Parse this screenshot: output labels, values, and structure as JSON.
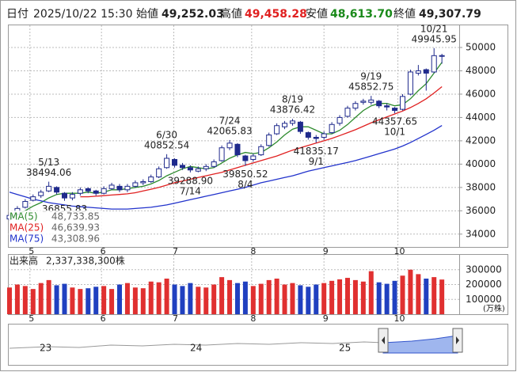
{
  "header": {
    "date_label": "日付",
    "date": "2025/10/22 15:30",
    "open_label": "始値",
    "open": "49,252.03",
    "high_label": "高値",
    "high": "49,458.28",
    "low_label": "安値",
    "low": "48,613.70",
    "close_label": "終値",
    "close": "49,307.79"
  },
  "chart_data": {
    "type": "candlestick",
    "grid": true,
    "legend": "lower left",
    "up_color": "#ffffff",
    "down_color": "#1f2a8c",
    "edge_color": "#1f2a8c",
    "xlim": [
      -0.2,
      57.2
    ],
    "xticks": [
      {
        "value": 2.6,
        "label": "5"
      },
      {
        "value": 11.7,
        "label": "6"
      },
      {
        "value": 20.9,
        "label": "7"
      },
      {
        "value": 30.8,
        "label": "8"
      },
      {
        "value": 40,
        "label": "9"
      },
      {
        "value": 49.4,
        "label": "10"
      }
    ],
    "ylim": [
      32900,
      51900
    ],
    "yticks": [
      34000,
      36000,
      38000,
      40000,
      42000,
      44000,
      46000,
      48000,
      50000
    ],
    "open": [
      35300,
      35700,
      36300,
      36900,
      37300,
      37700,
      38000,
      37500,
      37100,
      37500,
      37900,
      37700,
      37500,
      37900,
      38100,
      37800,
      38100,
      38400,
      38500,
      38900,
      39700,
      40400,
      39900,
      39700,
      39400,
      39600,
      39800,
      40300,
      41400,
      41700,
      40700,
      40400,
      40800,
      41600,
      42600,
      43200,
      43500,
      43600,
      42700,
      42300,
      42300,
      42700,
      43500,
      44100,
      44800,
      45300,
      45300,
      45400,
      45000,
      44800,
      44700,
      46000,
      47800,
      48100,
      47900,
      49252.03
    ],
    "high": [
      35800,
      36400,
      37000,
      37400,
      37800,
      38494.06,
      38100,
      37600,
      37600,
      38000,
      38000,
      37800,
      38100,
      38400,
      38300,
      38300,
      38600,
      38700,
      39100,
      39800,
      40852.54,
      40500,
      40100,
      39900,
      39800,
      40000,
      40400,
      41600,
      42065.83,
      41800,
      40800,
      40900,
      41700,
      42700,
      43500,
      43700,
      43876.42,
      43700,
      42800,
      42500,
      42800,
      43600,
      44200,
      45000,
      45400,
      45600,
      45852.75,
      45500,
      45200,
      44900,
      46000,
      48100,
      48500,
      48200,
      49945.95,
      49458.28
    ],
    "low": [
      35100,
      35600,
      36200,
      36800,
      37100,
      37600,
      37400,
      36855.83,
      36900,
      37300,
      37500,
      37300,
      37400,
      37800,
      37600,
      37600,
      38000,
      38200,
      38400,
      38800,
      39600,
      39700,
      39500,
      39288.9,
      39300,
      39400,
      39700,
      40200,
      41200,
      40600,
      39850.52,
      40200,
      40700,
      41500,
      42500,
      43000,
      43300,
      42600,
      42100,
      41835.17,
      42100,
      42600,
      43300,
      44000,
      44600,
      45100,
      45100,
      44800,
      44600,
      44357.65,
      44600,
      45900,
      47600,
      46300,
      47800,
      48613.7
    ],
    "close": [
      35600,
      36200,
      36800,
      37200,
      37600,
      38100,
      37600,
      37100,
      37400,
      37800,
      37700,
      37500,
      37900,
      38200,
      37800,
      38100,
      38400,
      38500,
      38900,
      39600,
      40500,
      39900,
      39700,
      39500,
      39600,
      39800,
      40200,
      41400,
      41800,
      40800,
      40300,
      40700,
      41500,
      42500,
      43300,
      43500,
      43700,
      42800,
      42300,
      42200,
      42600,
      43400,
      44000,
      44800,
      45200,
      45400,
      45500,
      45000,
      44900,
      44600,
      45800,
      47900,
      48000,
      47800,
      49300,
      49307.79
    ],
    "series": [
      {
        "name": "MA(5)",
        "color": "#2e8b2e",
        "legend_value": "48,733.85",
        "values": [
          35400,
          35700,
          36000,
          36400,
          36700,
          37100,
          37400,
          37500,
          37500,
          37500,
          37600,
          37500,
          37600,
          37800,
          37800,
          37900,
          38000,
          38100,
          38300,
          38600,
          39000,
          39300,
          39600,
          39800,
          39700,
          39600,
          39700,
          40100,
          40500,
          40800,
          41000,
          40900,
          41000,
          41400,
          41900,
          42500,
          43000,
          43200,
          43200,
          42900,
          42600,
          42600,
          42900,
          43400,
          44000,
          44600,
          45000,
          45200,
          45200,
          45000,
          45100,
          45600,
          46300,
          46900,
          47800,
          48733.85
        ]
      },
      {
        "name": "MA(25)",
        "color": "#e02020",
        "legend_value": "46,639.93",
        "values": [
          null,
          null,
          null,
          null,
          null,
          null,
          null,
          null,
          null,
          37200,
          37200,
          37250,
          37300,
          37350,
          37400,
          37450,
          37550,
          37700,
          37850,
          38000,
          38200,
          38400,
          38550,
          38700,
          38850,
          39000,
          39150,
          39300,
          39500,
          39700,
          39900,
          40100,
          40300,
          40500,
          40700,
          40950,
          41200,
          41400,
          41600,
          41800,
          42000,
          42200,
          42450,
          42700,
          42950,
          43250,
          43550,
          43800,
          44050,
          44300,
          44550,
          44850,
          45200,
          45600,
          46100,
          46639.93
        ]
      },
      {
        "name": "MA(75)",
        "color": "#2233cc",
        "legend_value": "43,308.96",
        "values": [
          37600,
          37400,
          37200,
          37000,
          36850,
          36700,
          36600,
          36500,
          36400,
          36350,
          36300,
          36250,
          36200,
          36150,
          36150,
          36150,
          36200,
          36250,
          36300,
          36400,
          36500,
          36650,
          36800,
          36950,
          37100,
          37250,
          37400,
          37550,
          37700,
          37850,
          38000,
          38200,
          38400,
          38550,
          38700,
          38850,
          39000,
          39200,
          39400,
          39550,
          39700,
          39850,
          40000,
          40150,
          40300,
          40500,
          40700,
          40900,
          41100,
          41300,
          41550,
          41850,
          42200,
          42550,
          42900,
          43308.96
        ]
      }
    ],
    "annotations": [
      {
        "index": 5,
        "at": "high",
        "date": "5/13",
        "label": "38494.06"
      },
      {
        "index": 7,
        "at": "low",
        "label": "36855.83"
      },
      {
        "index": 20,
        "at": "high",
        "date": "6/30",
        "label": "40852.54"
      },
      {
        "index": 23,
        "at": "low",
        "date": "7/14",
        "label": "39288.90"
      },
      {
        "index": 28,
        "at": "high",
        "date": "7/24",
        "label": "42065.83"
      },
      {
        "index": 30,
        "at": "low",
        "date": "8/4",
        "label": "39850.52"
      },
      {
        "index": 36,
        "at": "high",
        "date": "8/19",
        "label": "43876.42"
      },
      {
        "index": 39,
        "at": "low",
        "date": "9/1",
        "label": "41835.17"
      },
      {
        "index": 46,
        "at": "high",
        "date": "9/19",
        "label": "45852.75"
      },
      {
        "index": 49,
        "at": "low",
        "date": "10/1",
        "label": "44357.65"
      },
      {
        "index": 54,
        "at": "high",
        "date": "10/21",
        "label": "49945.95"
      }
    ],
    "volume": {
      "title": "出来高",
      "total_label": "2,337,338,300株",
      "unit_label": "(万株)",
      "up_color": "#e03030",
      "down_color": "#2040c0",
      "ylim": [
        0,
        400000
      ],
      "yticks": [
        100000,
        200000,
        300000
      ],
      "values": [
        180000,
        200000,
        190000,
        170000,
        210000,
        230000,
        195000,
        205000,
        180000,
        170000,
        175000,
        185000,
        190000,
        170000,
        200000,
        210000,
        180000,
        175000,
        220000,
        215000,
        240000,
        200000,
        190000,
        210000,
        185000,
        180000,
        200000,
        250000,
        230000,
        210000,
        220000,
        190000,
        205000,
        230000,
        240000,
        200000,
        210000,
        195000,
        185000,
        200000,
        210000,
        225000,
        235000,
        245000,
        230000,
        220000,
        290000,
        215000,
        205000,
        225000,
        260000,
        300000,
        270000,
        240000,
        250000,
        233733.83
      ]
    }
  },
  "navigator": {
    "labels": [
      "23",
      "24",
      "25"
    ]
  }
}
